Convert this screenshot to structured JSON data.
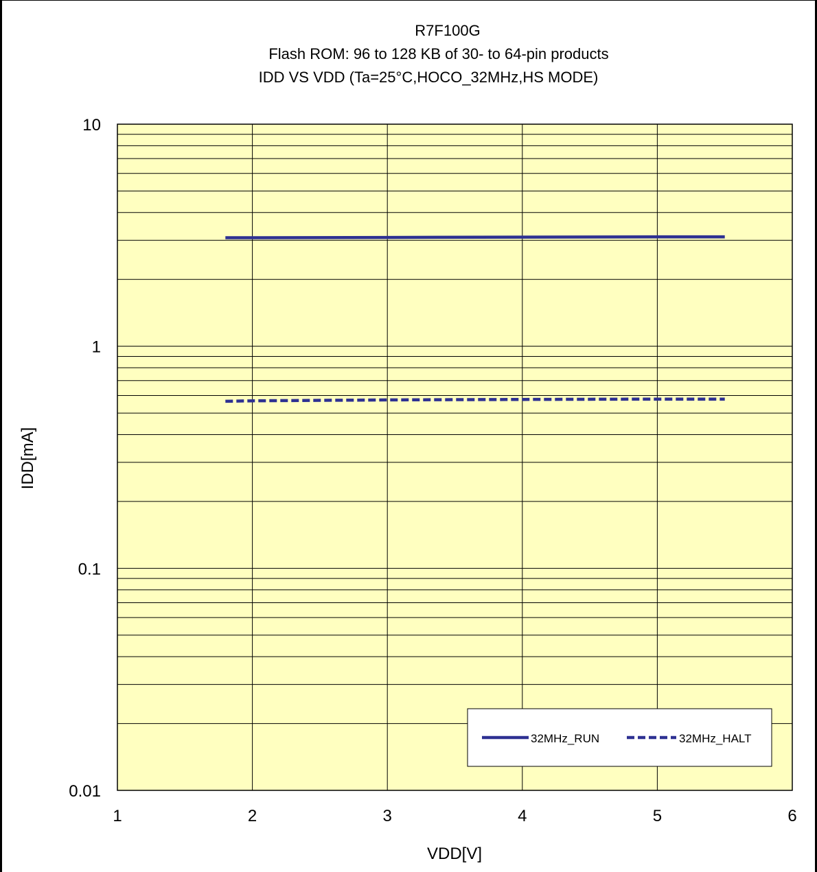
{
  "chart_data": {
    "type": "line",
    "title_lines": [
      "R7F100G",
      "Flash ROM: 96 to 128 KB of 30- to 64-pin products",
      "IDD VS VDD (Ta=25°C,HOCO_32MHz,HS MODE)"
    ],
    "xlabel": "VDD[V]",
    "ylabel": "IDD[mA]",
    "xlim": [
      1,
      6
    ],
    "ylim": [
      0.01,
      10
    ],
    "y_scale": "log",
    "x_ticks": [
      "1",
      "2",
      "3",
      "4",
      "5",
      "6"
    ],
    "y_ticks": [
      {
        "value": 10,
        "label": "10"
      },
      {
        "value": 1,
        "label": "1"
      },
      {
        "value": 0.1,
        "label": "0.1"
      },
      {
        "value": 0.01,
        "label": "0.01"
      }
    ],
    "grid": true,
    "legend_position": "bottom-right",
    "series": [
      {
        "name": "32MHz_RUN",
        "style": "solid",
        "color": "#2e3192",
        "x": [
          1.8,
          2,
          3,
          4,
          5,
          5.5
        ],
        "y": [
          3.08,
          3.08,
          3.09,
          3.1,
          3.11,
          3.11
        ]
      },
      {
        "name": "32MHz_HALT",
        "style": "dashed",
        "color": "#2e3192",
        "x": [
          1.8,
          2,
          3,
          4,
          5,
          5.5
        ],
        "y": [
          0.565,
          0.568,
          0.573,
          0.576,
          0.578,
          0.578
        ]
      }
    ],
    "plot_bg": "#ffffc0"
  }
}
